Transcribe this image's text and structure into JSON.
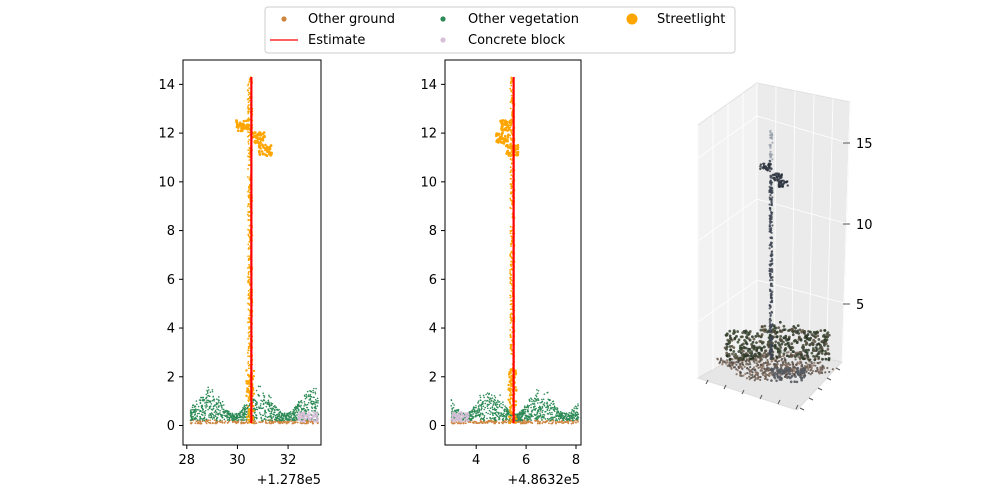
{
  "colors": {
    "other_ground": "#cd853f",
    "other_vegetation": "#2e8b57",
    "concrete_block": "#d8bfd8",
    "streetlight": "#ffa500",
    "estimate": "#ff0000"
  },
  "legend": {
    "position": "top-center",
    "items": [
      {
        "label": "Other ground",
        "marker": "small-dot",
        "color_key": "other_ground"
      },
      {
        "label": "Estimate",
        "marker": "line",
        "color_key": "estimate"
      },
      {
        "label": "Other vegetation",
        "marker": "small-dot",
        "color_key": "other_vegetation"
      },
      {
        "label": "Concrete block",
        "marker": "small-dot",
        "color_key": "concrete_block"
      },
      {
        "label": "Streetlight",
        "marker": "large-dot",
        "color_key": "streetlight"
      }
    ]
  },
  "chart_data": [
    {
      "type": "scatter",
      "title": "",
      "xlabel": "",
      "ylabel": "",
      "x_offset_text": "+1.278e5",
      "xlim": [
        27.85,
        33.3
      ],
      "ylim": [
        -0.8,
        15
      ],
      "xticks": [
        28,
        30,
        32
      ],
      "yticks": [
        0,
        2,
        4,
        6,
        8,
        10,
        12,
        14
      ],
      "pole": {
        "x": 30.5,
        "y_bottom": 0.1,
        "y_top": 14.3,
        "estimate_x": 30.55
      },
      "lamp_clusters": [
        {
          "x": 30.2,
          "y": 12.3
        },
        {
          "x": 30.85,
          "y": 11.8
        },
        {
          "x": 31.1,
          "y": 11.3
        }
      ],
      "vegetation": {
        "x_range": [
          28.15,
          33.2
        ],
        "height_range": [
          0.3,
          1.3
        ]
      },
      "ground": {
        "x_range": [
          28.15,
          33.2
        ],
        "y": 0.15
      },
      "concrete_block": {
        "x_range": [
          32.4,
          33.2
        ],
        "y_range": [
          0.15,
          0.55
        ]
      }
    },
    {
      "type": "scatter",
      "title": "",
      "xlabel": "",
      "ylabel": "",
      "x_offset_text": "+4.8632e5",
      "xlim": [
        2.75,
        8.2
      ],
      "ylim": [
        -0.8,
        15
      ],
      "xticks": [
        4,
        6,
        8
      ],
      "yticks": [
        0,
        2,
        4,
        6,
        8,
        10,
        12,
        14
      ],
      "pole": {
        "x": 5.45,
        "y_bottom": 0.1,
        "y_top": 14.3,
        "estimate_x": 5.5
      },
      "lamp_clusters": [
        {
          "x": 5.2,
          "y": 12.3
        },
        {
          "x": 5.05,
          "y": 11.8
        },
        {
          "x": 5.45,
          "y": 11.3
        }
      ],
      "vegetation": {
        "x_range": [
          3.0,
          8.1
        ],
        "height_range": [
          0.3,
          1.3
        ]
      },
      "ground": {
        "x_range": [
          3.0,
          8.1
        ],
        "y": 0.15
      },
      "concrete_block": {
        "x_range": [
          3.0,
          3.7
        ],
        "y_range": [
          0.15,
          0.55
        ]
      }
    },
    {
      "type": "scatter3d",
      "title": "",
      "zticks": [
        5,
        10,
        15
      ],
      "description_hidden": false
    }
  ]
}
